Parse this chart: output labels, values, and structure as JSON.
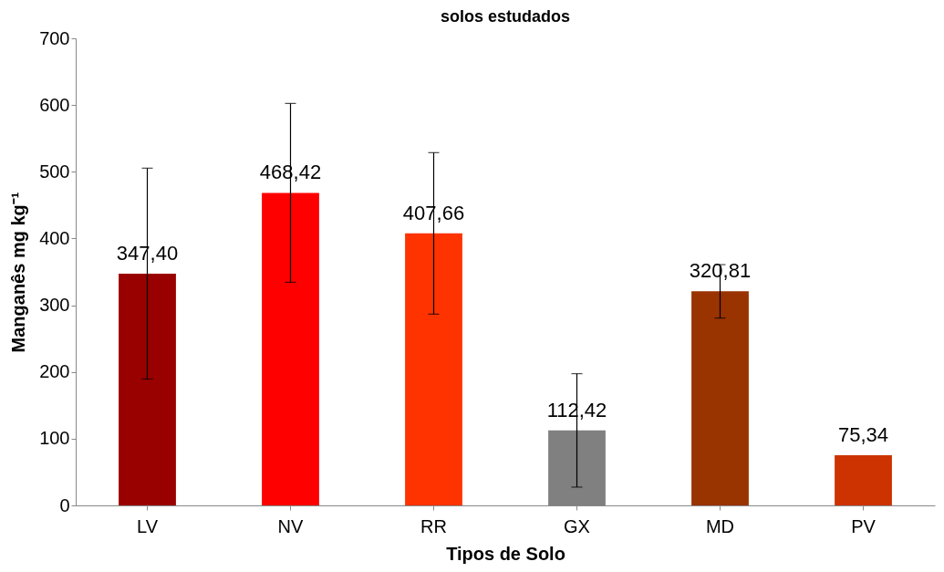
{
  "chart_data": {
    "type": "bar",
    "title": "solos estudados",
    "xlabel": "Tipos de Solo",
    "ylabel": "Manganês mg kg⁻¹",
    "categories": [
      "LV",
      "NV",
      "RR",
      "GX",
      "MD",
      "PV"
    ],
    "values": [
      347.4,
      468.42,
      407.66,
      112.42,
      320.81,
      75.34
    ],
    "colors": [
      "#990000",
      "#ff0000",
      "#ff3300",
      "#808080",
      "#993300",
      "#cc3300"
    ],
    "errors": [
      158,
      134,
      121,
      85,
      40,
      null
    ],
    "value_labels": [
      "347,40",
      "468,42",
      "407,66",
      "112,42",
      "320,81",
      "75,34"
    ],
    "ylim": [
      0,
      700
    ],
    "yticks": [
      0,
      100,
      200,
      300,
      400,
      500,
      600,
      700
    ],
    "grid": false,
    "legend": false
  }
}
